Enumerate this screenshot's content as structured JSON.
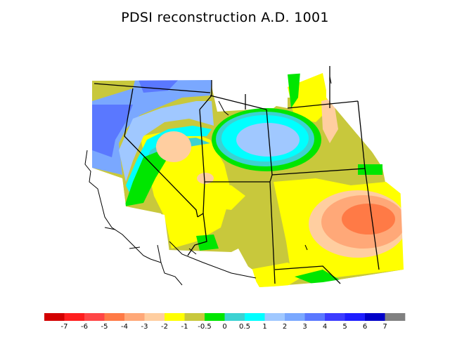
{
  "title": "PDSI reconstruction A.D. 1001",
  "legend": {
    "colors": [
      "#d20000",
      "#ff1e1e",
      "#ff4646",
      "#ff7a46",
      "#ffa878",
      "#ffcea0",
      "#ffff00",
      "#c8c83c",
      "#00e600",
      "#3cd2d2",
      "#00ffff",
      "#a0c8ff",
      "#7aa8ff",
      "#5a78ff",
      "#3c3cff",
      "#1e1eff",
      "#0000c8",
      "#808080"
    ],
    "tick_labels": [
      "-7",
      "-6",
      "-5",
      "-4",
      "-3",
      "-2",
      "-1",
      "-0.5",
      "0",
      "0.5",
      "1",
      "2",
      "3",
      "4",
      "5",
      "6",
      "7"
    ]
  }
}
